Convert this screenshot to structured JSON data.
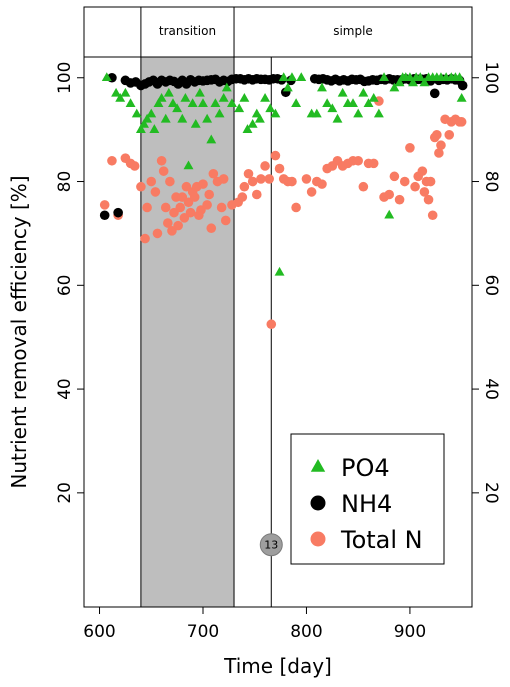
{
  "chart_data": {
    "type": "scatter",
    "xlabel": "Time [day]",
    "ylabel": "Nutrient removal efficiency [%]",
    "xlim": [
      585,
      960
    ],
    "ylim": [
      -2,
      104
    ],
    "x_ticks": [
      600,
      700,
      800,
      900
    ],
    "y_ticks": [
      20,
      40,
      60,
      80,
      100
    ],
    "phases": [
      {
        "label": "transition",
        "start": 640,
        "end": 730,
        "shaded": true
      },
      {
        "label": "simple",
        "start": 730,
        "end": 960,
        "shaded": false
      }
    ],
    "phase_start": 585,
    "marker_line_x": 766,
    "marker": {
      "label": "13",
      "x": 766,
      "y": 10
    },
    "legend_position": "bottom-right",
    "series": [
      {
        "name": "PO4",
        "marker": "triangle",
        "color": "#22bb22",
        "points": [
          [
            607,
            100
          ],
          [
            616,
            97
          ],
          [
            620,
            96
          ],
          [
            625,
            97
          ],
          [
            630,
            95
          ],
          [
            636,
            93
          ],
          [
            640,
            90
          ],
          [
            643,
            91
          ],
          [
            646,
            92
          ],
          [
            650,
            93
          ],
          [
            653,
            90
          ],
          [
            657,
            95
          ],
          [
            660,
            96
          ],
          [
            664,
            92
          ],
          [
            667,
            97
          ],
          [
            671,
            95
          ],
          [
            675,
            94
          ],
          [
            680,
            92
          ],
          [
            683,
            96
          ],
          [
            686,
            83
          ],
          [
            690,
            95
          ],
          [
            693,
            91
          ],
          [
            697,
            97
          ],
          [
            700,
            95
          ],
          [
            704,
            92
          ],
          [
            708,
            88
          ],
          [
            712,
            95
          ],
          [
            716,
            93
          ],
          [
            720,
            96
          ],
          [
            723,
            98
          ],
          [
            728,
            95
          ],
          [
            735,
            94
          ],
          [
            740,
            96
          ],
          [
            743,
            90
          ],
          [
            748,
            91
          ],
          [
            752,
            93
          ],
          [
            755,
            92
          ],
          [
            760,
            96
          ],
          [
            765,
            94
          ],
          [
            770,
            93
          ],
          [
            774,
            62.5
          ],
          [
            778,
            100
          ],
          [
            782,
            98
          ],
          [
            786,
            100
          ],
          [
            790,
            95
          ],
          [
            795,
            100
          ],
          [
            805,
            93
          ],
          [
            810,
            93
          ],
          [
            815,
            98
          ],
          [
            820,
            95
          ],
          [
            825,
            94
          ],
          [
            830,
            92
          ],
          [
            835,
            97
          ],
          [
            840,
            95
          ],
          [
            845,
            95
          ],
          [
            850,
            93
          ],
          [
            855,
            97
          ],
          [
            860,
            95
          ],
          [
            865,
            96
          ],
          [
            870,
            93
          ],
          [
            875,
            100
          ],
          [
            880,
            73.5
          ],
          [
            885,
            98
          ],
          [
            890,
            99
          ],
          [
            893,
            100
          ],
          [
            896,
            100
          ],
          [
            900,
            100
          ],
          [
            903,
            99
          ],
          [
            906,
            100
          ],
          [
            910,
            100
          ],
          [
            914,
            99
          ],
          [
            918,
            100
          ],
          [
            922,
            100
          ],
          [
            926,
            100
          ],
          [
            930,
            100
          ],
          [
            935,
            100
          ],
          [
            940,
            100
          ],
          [
            944,
            100
          ],
          [
            948,
            100
          ],
          [
            950,
            96
          ]
        ]
      },
      {
        "name": "NH4",
        "marker": "circle",
        "color": "#000000",
        "points": [
          [
            605,
            73.5
          ],
          [
            612,
            100
          ],
          [
            618,
            74
          ],
          [
            625,
            99.5
          ],
          [
            630,
            99
          ],
          [
            635,
            99.2
          ],
          [
            640,
            98.5
          ],
          [
            644,
            98.8
          ],
          [
            648,
            99.2
          ],
          [
            652,
            99.5
          ],
          [
            656,
            98.8
          ],
          [
            660,
            99.5
          ],
          [
            664,
            99.2
          ],
          [
            668,
            99.5
          ],
          [
            672,
            99.3
          ],
          [
            676,
            98.8
          ],
          [
            680,
            99.5
          ],
          [
            684,
            98.8
          ],
          [
            688,
            99.6
          ],
          [
            692,
            99.2
          ],
          [
            696,
            99.5
          ],
          [
            700,
            99.4
          ],
          [
            704,
            99.5
          ],
          [
            708,
            99.6
          ],
          [
            712,
            99.7
          ],
          [
            716,
            99.2
          ],
          [
            720,
            99.5
          ],
          [
            724,
            99.3
          ],
          [
            728,
            99.7
          ],
          [
            732,
            99.8
          ],
          [
            736,
            99.8
          ],
          [
            740,
            99.6
          ],
          [
            744,
            99.8
          ],
          [
            748,
            99.6
          ],
          [
            752,
            99.8
          ],
          [
            756,
            99.7
          ],
          [
            760,
            99.7
          ],
          [
            764,
            99.6
          ],
          [
            768,
            99.8
          ],
          [
            772,
            99.8
          ],
          [
            776,
            99.6
          ],
          [
            780,
            97.2
          ],
          [
            785,
            99.5
          ],
          [
            808,
            99.8
          ],
          [
            812,
            99.7
          ],
          [
            816,
            99.8
          ],
          [
            820,
            99.6
          ],
          [
            824,
            99.4
          ],
          [
            828,
            99.7
          ],
          [
            832,
            99.4
          ],
          [
            836,
            99.6
          ],
          [
            840,
            99.4
          ],
          [
            844,
            99.7
          ],
          [
            848,
            99.6
          ],
          [
            852,
            99.7
          ],
          [
            856,
            99.3
          ],
          [
            860,
            99.4
          ],
          [
            864,
            99.6
          ],
          [
            868,
            99.5
          ],
          [
            872,
            99.7
          ],
          [
            876,
            99.6
          ],
          [
            880,
            99.8
          ],
          [
            884,
            99.6
          ],
          [
            888,
            99.6
          ],
          [
            892,
            99.6
          ],
          [
            896,
            99.8
          ],
          [
            900,
            99.6
          ],
          [
            904,
            99.8
          ],
          [
            908,
            99.7
          ],
          [
            912,
            99.7
          ],
          [
            916,
            99.8
          ],
          [
            920,
            99.4
          ],
          [
            924,
            97
          ],
          [
            928,
            99.5
          ],
          [
            932,
            99.7
          ],
          [
            936,
            99.6
          ],
          [
            940,
            99.8
          ],
          [
            944,
            99.6
          ],
          [
            948,
            99.5
          ],
          [
            951,
            98.5
          ]
        ]
      },
      {
        "name": "Total N",
        "marker": "circle",
        "color": "#f87b63",
        "points": [
          [
            605,
            75.5
          ],
          [
            612,
            84
          ],
          [
            618,
            73.5
          ],
          [
            625,
            84.5
          ],
          [
            630,
            83.5
          ],
          [
            634,
            83
          ],
          [
            640,
            79
          ],
          [
            644,
            69
          ],
          [
            646,
            75
          ],
          [
            650,
            80
          ],
          [
            654,
            78
          ],
          [
            656,
            70
          ],
          [
            660,
            84
          ],
          [
            662,
            82
          ],
          [
            664,
            75
          ],
          [
            666,
            72
          ],
          [
            668,
            80
          ],
          [
            670,
            70.5
          ],
          [
            672,
            74
          ],
          [
            674,
            77
          ],
          [
            676,
            71.5
          ],
          [
            678,
            75
          ],
          [
            680,
            77
          ],
          [
            682,
            73
          ],
          [
            684,
            79
          ],
          [
            686,
            76
          ],
          [
            688,
            74
          ],
          [
            690,
            78
          ],
          [
            692,
            77
          ],
          [
            694,
            79
          ],
          [
            696,
            73.5
          ],
          [
            698,
            74.5
          ],
          [
            700,
            79.5
          ],
          [
            704,
            75.5
          ],
          [
            706,
            77.5
          ],
          [
            708,
            71
          ],
          [
            710,
            81.5
          ],
          [
            714,
            80
          ],
          [
            718,
            75
          ],
          [
            720,
            80.5
          ],
          [
            722,
            72.5
          ],
          [
            728,
            75.5
          ],
          [
            734,
            76
          ],
          [
            738,
            77
          ],
          [
            740,
            79
          ],
          [
            744,
            81.5
          ],
          [
            748,
            80
          ],
          [
            752,
            77.5
          ],
          [
            756,
            80.5
          ],
          [
            760,
            83
          ],
          [
            764,
            80.5
          ],
          [
            766,
            52.5
          ],
          [
            770,
            85
          ],
          [
            774,
            82.5
          ],
          [
            778,
            80.5
          ],
          [
            782,
            80
          ],
          [
            786,
            80
          ],
          [
            790,
            75
          ],
          [
            800,
            80.5
          ],
          [
            805,
            78
          ],
          [
            810,
            80
          ],
          [
            815,
            79.5
          ],
          [
            820,
            82.5
          ],
          [
            825,
            83
          ],
          [
            830,
            84
          ],
          [
            835,
            83
          ],
          [
            840,
            83.5
          ],
          [
            845,
            84
          ],
          [
            850,
            84
          ],
          [
            855,
            79
          ],
          [
            860,
            83.5
          ],
          [
            865,
            83.5
          ],
          [
            870,
            95.5
          ],
          [
            875,
            77
          ],
          [
            880,
            77.5
          ],
          [
            885,
            81
          ],
          [
            890,
            76.5
          ],
          [
            895,
            80
          ],
          [
            900,
            86.5
          ],
          [
            905,
            79
          ],
          [
            908,
            81
          ],
          [
            912,
            82
          ],
          [
            914,
            78
          ],
          [
            916,
            80
          ],
          [
            918,
            76.5
          ],
          [
            920,
            80
          ],
          [
            922,
            73.5
          ],
          [
            924,
            88.5
          ],
          [
            926,
            89
          ],
          [
            928,
            85.5
          ],
          [
            930,
            87
          ],
          [
            934,
            92
          ],
          [
            938,
            89
          ],
          [
            940,
            91.5
          ],
          [
            944,
            92
          ],
          [
            948,
            91.5
          ],
          [
            950,
            91.5
          ]
        ]
      }
    ]
  }
}
